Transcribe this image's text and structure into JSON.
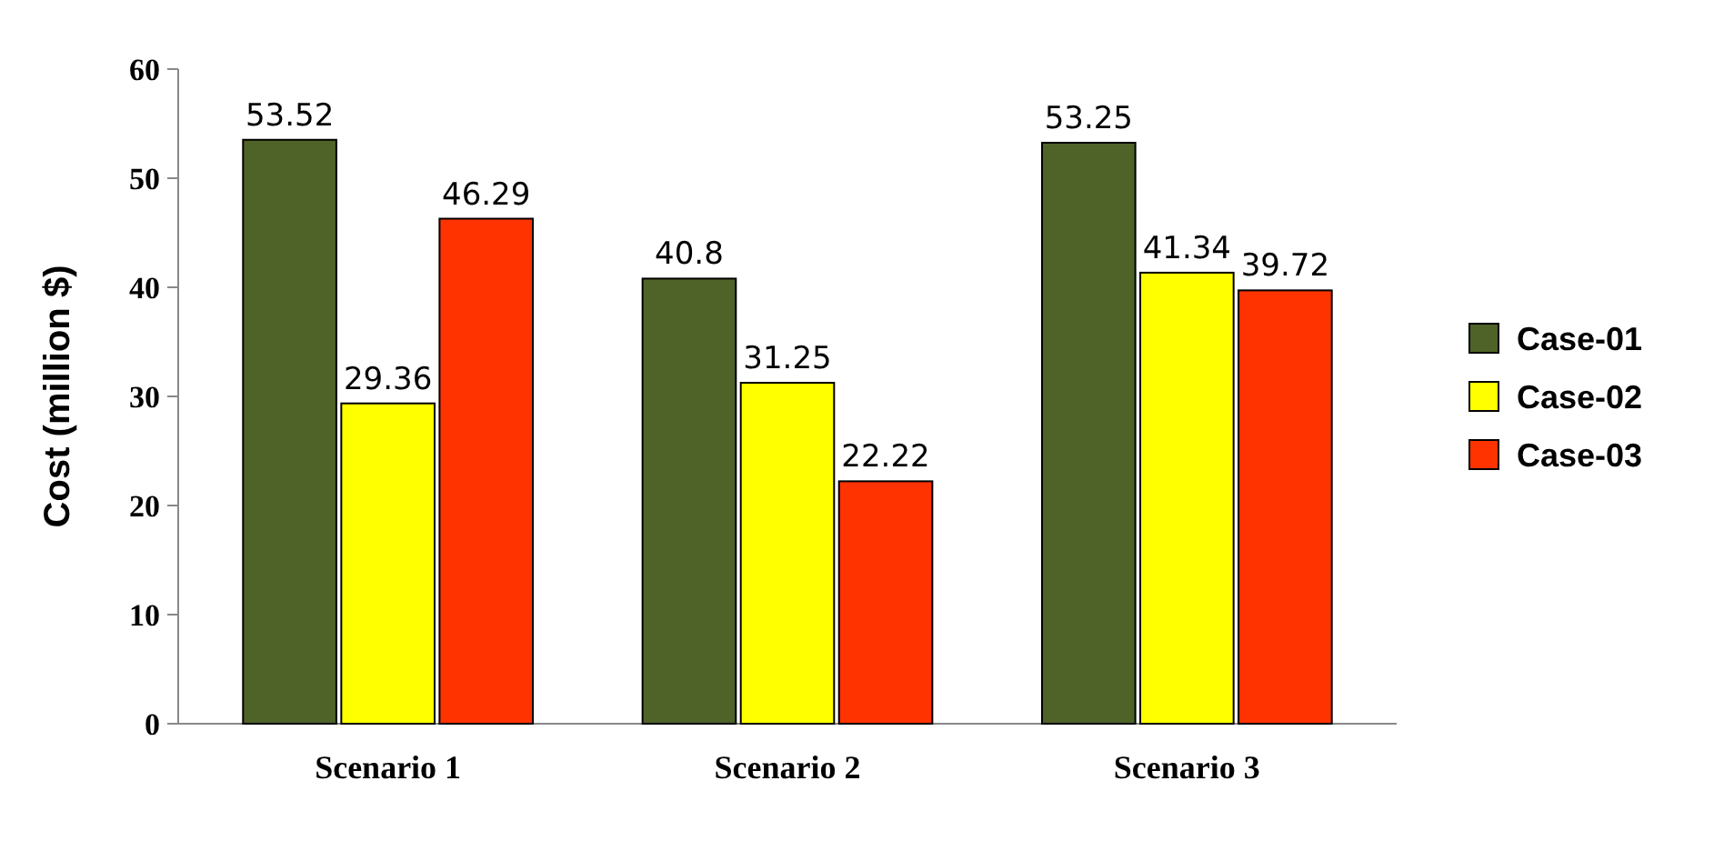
{
  "chart_data": {
    "type": "bar",
    "ylabel": "Cost (million $)",
    "categories": [
      "Scenario 1",
      "Scenario 2",
      "Scenario 3"
    ],
    "series": [
      {
        "name": "Case-01",
        "color": "#4f6228",
        "values": [
          53.52,
          40.8,
          53.25
        ]
      },
      {
        "name": "Case-02",
        "color": "#ffff00",
        "values": [
          29.36,
          31.25,
          41.34
        ]
      },
      {
        "name": "Case-03",
        "color": "#ff3300",
        "values": [
          46.29,
          22.22,
          39.72
        ]
      }
    ],
    "ylim": [
      0,
      60
    ],
    "yticks": [
      0,
      10,
      20,
      30,
      40,
      50,
      60
    ],
    "data_labels": true,
    "legend": "right",
    "grid": false
  }
}
